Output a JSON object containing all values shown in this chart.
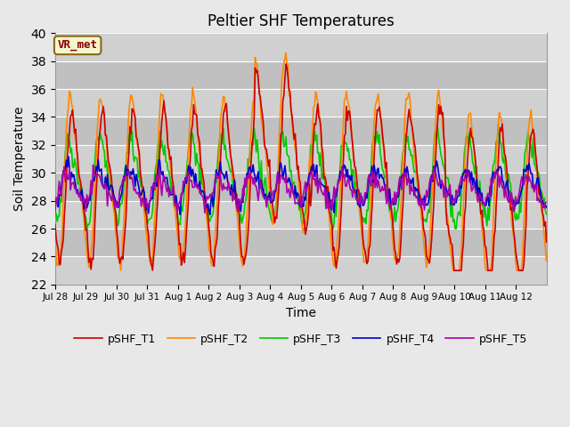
{
  "title": "Peltier SHF Temperatures",
  "xlabel": "Time",
  "ylabel": "Soil Temperature",
  "ylim": [
    22,
    40
  ],
  "yticks": [
    22,
    24,
    26,
    28,
    30,
    32,
    34,
    36,
    38,
    40
  ],
  "colors": {
    "T1": "#cc0000",
    "T2": "#ff8800",
    "T3": "#00cc00",
    "T4": "#0000cc",
    "T5": "#aa00aa"
  },
  "legend_labels": [
    "pSHF_T1",
    "pSHF_T2",
    "pSHF_T3",
    "pSHF_T4",
    "pSHF_T5"
  ],
  "annotation_text": "VR_met",
  "annotation_color": "#8b0000",
  "bg_color": "#e8e8e8",
  "stripe_colors": [
    "#d0d0d0",
    "#c0c0c0"
  ],
  "linewidth": 1.2,
  "x_tick_labels": [
    "Jul 28",
    "Jul 29",
    "Jul 30",
    "Jul 31",
    "Aug 1",
    "Aug 2",
    "Aug 3",
    "Aug 4",
    "Aug 5",
    "Aug 6",
    "Aug 7",
    "Aug 8",
    "Aug 9",
    "Aug 10",
    "Aug 11",
    "Aug 12"
  ],
  "n_points": 480
}
